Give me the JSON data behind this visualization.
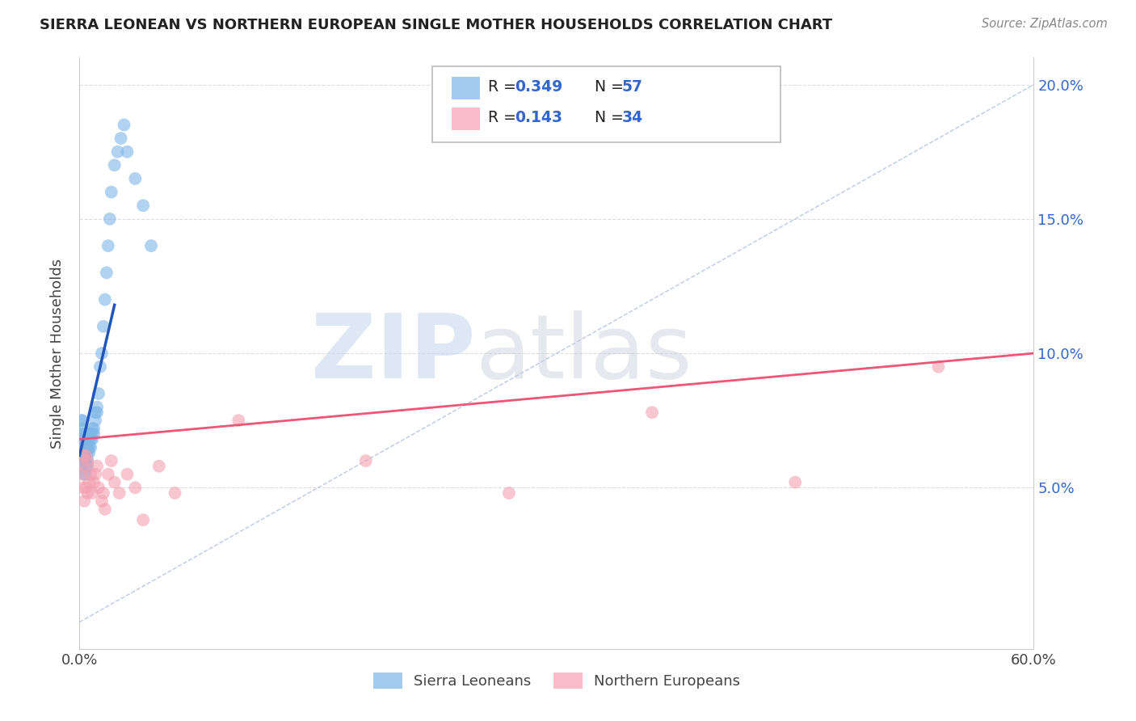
{
  "title": "SIERRA LEONEAN VS NORTHERN EUROPEAN SINGLE MOTHER HOUSEHOLDS CORRELATION CHART",
  "source": "Source: ZipAtlas.com",
  "ylabel": "Single Mother Households",
  "xlim": [
    0.0,
    0.6
  ],
  "ylim": [
    -0.01,
    0.21
  ],
  "ytick_vals": [
    0.05,
    0.1,
    0.15,
    0.2
  ],
  "ytick_labels": [
    "5.0%",
    "10.0%",
    "15.0%",
    "20.0%"
  ],
  "xtick_vals": [
    0.0,
    0.6
  ],
  "xtick_labels": [
    "0.0%",
    "60.0%"
  ],
  "blue_color": "#7EB6E8",
  "pink_color": "#F4A0B0",
  "blue_line_color": "#2255BB",
  "pink_line_color": "#EE5577",
  "diag_color": "#AABBDD",
  "grid_color": "#DDDDDD",
  "sl_x": [
    0.001,
    0.001,
    0.001,
    0.002,
    0.002,
    0.002,
    0.002,
    0.002,
    0.003,
    0.003,
    0.003,
    0.003,
    0.003,
    0.003,
    0.004,
    0.004,
    0.004,
    0.004,
    0.004,
    0.004,
    0.005,
    0.005,
    0.005,
    0.005,
    0.005,
    0.006,
    0.006,
    0.006,
    0.007,
    0.007,
    0.007,
    0.008,
    0.008,
    0.008,
    0.009,
    0.009,
    0.01,
    0.01,
    0.011,
    0.011,
    0.012,
    0.013,
    0.014,
    0.015,
    0.016,
    0.017,
    0.018,
    0.019,
    0.02,
    0.022,
    0.024,
    0.026,
    0.028,
    0.03,
    0.035,
    0.04,
    0.045
  ],
  "sl_y": [
    0.065,
    0.07,
    0.075,
    0.06,
    0.065,
    0.068,
    0.072,
    0.075,
    0.055,
    0.06,
    0.062,
    0.065,
    0.068,
    0.07,
    0.055,
    0.058,
    0.06,
    0.063,
    0.065,
    0.068,
    0.058,
    0.06,
    0.063,
    0.065,
    0.068,
    0.063,
    0.065,
    0.068,
    0.065,
    0.068,
    0.07,
    0.068,
    0.07,
    0.072,
    0.07,
    0.072,
    0.075,
    0.078,
    0.078,
    0.08,
    0.085,
    0.095,
    0.1,
    0.11,
    0.12,
    0.13,
    0.14,
    0.15,
    0.16,
    0.17,
    0.175,
    0.18,
    0.185,
    0.175,
    0.165,
    0.155,
    0.14
  ],
  "ne_x": [
    0.001,
    0.002,
    0.002,
    0.003,
    0.003,
    0.004,
    0.004,
    0.005,
    0.005,
    0.006,
    0.007,
    0.008,
    0.009,
    0.01,
    0.011,
    0.012,
    0.014,
    0.015,
    0.016,
    0.018,
    0.02,
    0.022,
    0.025,
    0.03,
    0.035,
    0.04,
    0.05,
    0.06,
    0.1,
    0.18,
    0.27,
    0.36,
    0.45,
    0.54
  ],
  "ne_y": [
    0.055,
    0.05,
    0.062,
    0.045,
    0.058,
    0.05,
    0.062,
    0.048,
    0.06,
    0.052,
    0.055,
    0.048,
    0.052,
    0.055,
    0.058,
    0.05,
    0.045,
    0.048,
    0.042,
    0.055,
    0.06,
    0.052,
    0.048,
    0.055,
    0.05,
    0.038,
    0.058,
    0.048,
    0.075,
    0.06,
    0.048,
    0.078,
    0.052,
    0.095
  ],
  "sl_line_x": [
    0.0,
    0.022
  ],
  "sl_line_y_start": 0.062,
  "sl_line_y_end": 0.118,
  "ne_line_x": [
    0.0,
    0.6
  ],
  "ne_line_y_start": 0.068,
  "ne_line_y_end": 0.1
}
